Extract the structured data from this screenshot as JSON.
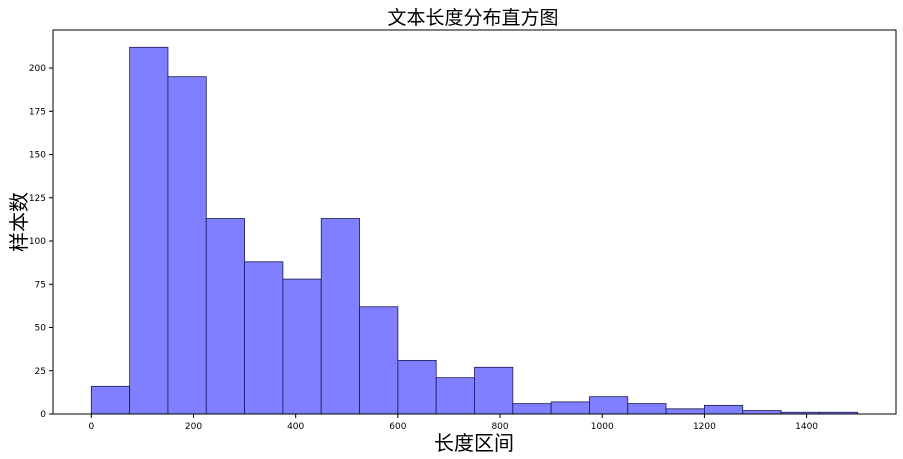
{
  "chart_data": {
    "type": "bar",
    "title": "文本长度分布直方图",
    "xlabel": "长度区间",
    "ylabel": "样本数",
    "xlim": [
      -75,
      1575
    ],
    "ylim": [
      0,
      222
    ],
    "bin_edges": [
      0,
      75,
      150,
      225,
      300,
      375,
      450,
      525,
      600,
      675,
      750,
      825,
      900,
      975,
      1050,
      1125,
      1200,
      1275,
      1350,
      1425,
      1500
    ],
    "values": [
      16,
      212,
      195,
      113,
      88,
      78,
      113,
      62,
      31,
      21,
      27,
      6,
      7,
      10,
      6,
      3,
      5,
      2,
      1,
      1
    ],
    "xticks": [
      0,
      200,
      400,
      600,
      800,
      1000,
      1200,
      1400
    ],
    "yticks": [
      0,
      25,
      50,
      75,
      100,
      125,
      150,
      175,
      200
    ],
    "bar_color": "#7f7fff",
    "edge_color": "#1a1a4d",
    "grid": false,
    "legend": "none"
  }
}
